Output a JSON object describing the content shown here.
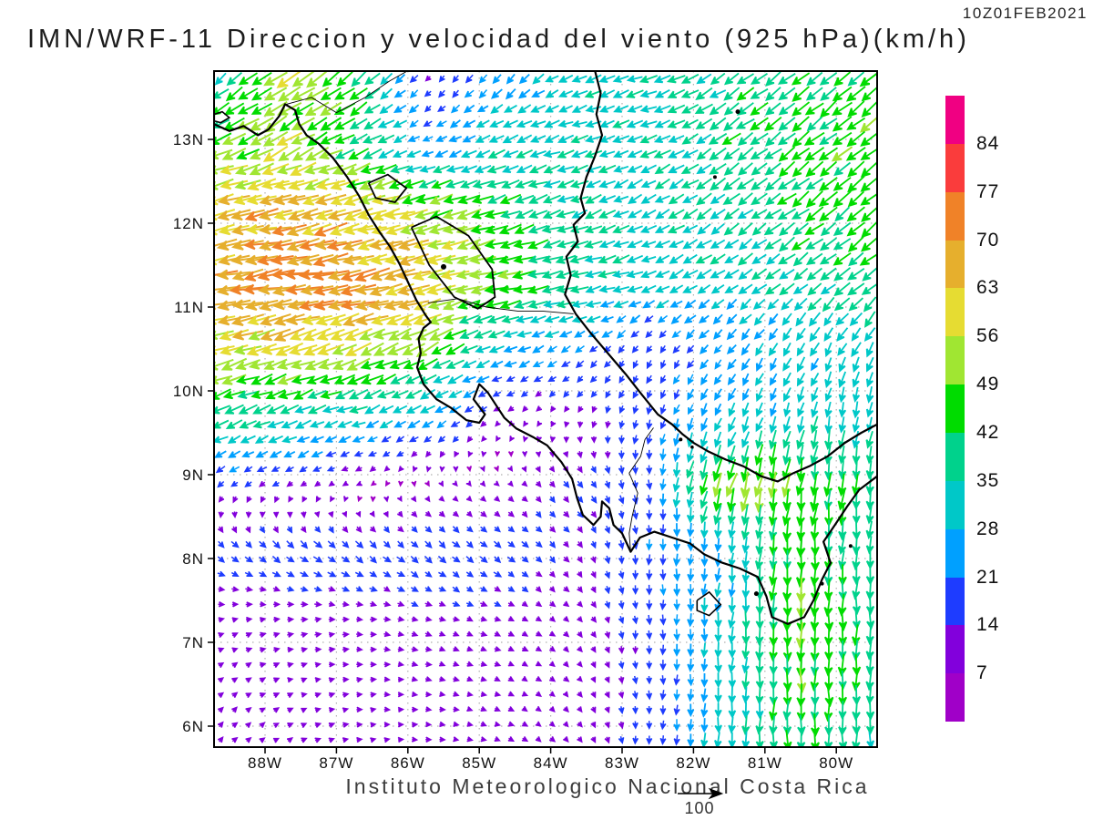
{
  "header": {
    "title": "IMN/WRF-11 Direccion y velocidad del viento (925 hPa)(km/h)",
    "timestamp": "10Z01FEB2021"
  },
  "footer": {
    "credit": "Instituto Meteorologico Nacional Costa Rica",
    "reference_vector": {
      "label": "100",
      "value": 100
    }
  },
  "colorbar": {
    "levels_top_to_bottom": [
      "84",
      "77",
      "70",
      "63",
      "56",
      "49",
      "42",
      "35",
      "28",
      "21",
      "14",
      "7"
    ],
    "colors_bottom_to_top": [
      "#A000C8",
      "#8200DC",
      "#1E3CFF",
      "#00A0FF",
      "#00C8C8",
      "#00D28C",
      "#00DC00",
      "#A0E632",
      "#E6DC32",
      "#E6AF2D",
      "#F08228",
      "#FA3C3C",
      "#F00082"
    ]
  },
  "axes": {
    "lat_ticks": [
      {
        "label": "13N",
        "value": 13
      },
      {
        "label": "12N",
        "value": 12
      },
      {
        "label": "11N",
        "value": 11
      },
      {
        "label": "10N",
        "value": 10
      },
      {
        "label": "9N",
        "value": 9
      },
      {
        "label": "8N",
        "value": 8
      },
      {
        "label": "7N",
        "value": 7
      },
      {
        "label": "6N",
        "value": 6
      }
    ],
    "lon_ticks": [
      {
        "label": "88W",
        "value": -88
      },
      {
        "label": "87W",
        "value": -87
      },
      {
        "label": "86W",
        "value": -86
      },
      {
        "label": "85W",
        "value": -85
      },
      {
        "label": "84W",
        "value": -84
      },
      {
        "label": "83W",
        "value": -83
      },
      {
        "label": "82W",
        "value": -82
      },
      {
        "label": "81W",
        "value": -81
      },
      {
        "label": "80W",
        "value": -80
      }
    ]
  },
  "chart_data": {
    "type": "vector_field",
    "title": "IMN/WRF-11 Direccion y velocidad del viento (925 hPa)(km/h)",
    "valid_time": "10Z01FEB2021",
    "level": "925 hPa",
    "units": "km/h",
    "lon_range": [
      -88.71,
      -79.43
    ],
    "lat_range": [
      5.73,
      13.82
    ],
    "speed_levels": [
      7,
      14,
      21,
      28,
      35,
      42,
      49,
      56,
      63,
      70,
      77,
      84
    ],
    "reference_vector": 100,
    "grid": {
      "lons": [
        -88.8,
        -87.77,
        -86.73,
        -85.7,
        -84.67,
        -83.63,
        -82.6,
        -81.57,
        -80.53,
        -79.5
      ],
      "lats": [
        5.7,
        6.5,
        7.3,
        8.1,
        8.9,
        9.7,
        10.5,
        11.3,
        12.1,
        12.9,
        13.7
      ],
      "u": [
        [
          7,
          9,
          10,
          10,
          10,
          7,
          -1,
          -2,
          0,
          0
        ],
        [
          8,
          10,
          11,
          11,
          10,
          7,
          0,
          -2,
          0,
          0
        ],
        [
          10,
          12,
          12,
          12,
          11,
          8,
          0,
          -2,
          -2,
          0
        ],
        [
          14,
          16,
          16,
          15,
          14,
          8,
          0,
          -2,
          -4,
          -2
        ],
        [
          -14,
          -12,
          -8,
          4,
          6,
          10,
          2,
          -16,
          -8,
          -4
        ],
        [
          -34,
          -34,
          -30,
          -24,
          -8,
          -4,
          -6,
          -12,
          -8,
          -6
        ],
        [
          -55,
          -56,
          -52,
          -44,
          -26,
          -18,
          -8,
          -16,
          -14,
          -16
        ],
        [
          -66,
          -71,
          -73,
          -62,
          -48,
          -38,
          -30,
          -26,
          -28,
          -32
        ],
        [
          -62,
          -65,
          -62,
          -52,
          -42,
          -33,
          -28,
          -30,
          -33,
          -35
        ],
        [
          -46,
          -46,
          -38,
          -20,
          -32,
          -32,
          -30,
          -33,
          -35,
          -36
        ],
        [
          -20,
          -48,
          -34,
          -8,
          -16,
          -30,
          -33,
          -32,
          -33,
          -34
        ]
      ],
      "v": [
        [
          9,
          6,
          3,
          0,
          -4,
          -9,
          -16,
          -32,
          -44,
          -36
        ],
        [
          8,
          4,
          1,
          -2,
          -4,
          -8,
          -16,
          -30,
          -46,
          -38
        ],
        [
          4,
          2,
          0,
          -4,
          -5,
          -8,
          -18,
          -30,
          -48,
          -38
        ],
        [
          -12,
          -14,
          -14,
          -13,
          -12,
          -10,
          -20,
          -26,
          -46,
          -36
        ],
        [
          -10,
          -8,
          -4,
          -6,
          -6,
          -12,
          -18,
          -50,
          -48,
          -38
        ],
        [
          -14,
          -14,
          -12,
          -14,
          -6,
          -10,
          -18,
          -24,
          -30,
          -32
        ],
        [
          -16,
          -18,
          -20,
          -22,
          -10,
          -12,
          -14,
          -18,
          -26,
          -28
        ],
        [
          -10,
          -12,
          -13,
          -16,
          -10,
          -8,
          -12,
          -18,
          -22,
          -26
        ],
        [
          -14,
          -15,
          -16,
          -14,
          -14,
          -12,
          -16,
          -20,
          -25,
          -28
        ],
        [
          -16,
          -24,
          -18,
          -10,
          -12,
          -10,
          -14,
          -22,
          -28,
          -30
        ],
        [
          -18,
          -34,
          -28,
          -10,
          -20,
          -12,
          -10,
          -20,
          -26,
          -30
        ]
      ]
    }
  },
  "geo": {
    "coast_pacific": [
      [
        -88.71,
        13.18
      ],
      [
        -88.5,
        13.1
      ],
      [
        -88.3,
        13.16
      ],
      [
        -88.1,
        13.05
      ],
      [
        -87.95,
        13.12
      ],
      [
        -87.8,
        13.28
      ],
      [
        -87.72,
        13.42
      ],
      [
        -87.58,
        13.35
      ],
      [
        -87.52,
        13.18
      ],
      [
        -87.42,
        13.05
      ],
      [
        -87.25,
        12.95
      ],
      [
        -87.05,
        12.78
      ],
      [
        -86.85,
        12.55
      ],
      [
        -86.68,
        12.32
      ],
      [
        -86.55,
        12.1
      ],
      [
        -86.4,
        11.9
      ],
      [
        -86.25,
        11.72
      ],
      [
        -86.12,
        11.52
      ],
      [
        -86.0,
        11.3
      ],
      [
        -85.88,
        11.08
      ],
      [
        -85.75,
        10.9
      ],
      [
        -85.68,
        10.82
      ],
      [
        -85.78,
        10.75
      ],
      [
        -85.85,
        10.62
      ],
      [
        -85.82,
        10.45
      ],
      [
        -85.87,
        10.28
      ],
      [
        -85.78,
        10.08
      ],
      [
        -85.6,
        9.9
      ],
      [
        -85.4,
        9.8
      ],
      [
        -85.18,
        9.65
      ],
      [
        -85.0,
        9.62
      ],
      [
        -84.92,
        9.72
      ],
      [
        -85.08,
        9.9
      ],
      [
        -85.0,
        10.08
      ],
      [
        -84.88,
        9.98
      ],
      [
        -84.78,
        9.85
      ],
      [
        -84.65,
        9.68
      ],
      [
        -84.48,
        9.55
      ],
      [
        -84.25,
        9.45
      ],
      [
        -84.05,
        9.35
      ],
      [
        -83.85,
        9.15
      ],
      [
        -83.7,
        8.95
      ],
      [
        -83.63,
        8.72
      ],
      [
        -83.55,
        8.52
      ],
      [
        -83.4,
        8.4
      ],
      [
        -83.3,
        8.5
      ],
      [
        -83.28,
        8.68
      ],
      [
        -83.18,
        8.6
      ],
      [
        -83.12,
        8.4
      ],
      [
        -83.0,
        8.3
      ],
      [
        -82.88,
        8.08
      ],
      [
        -82.75,
        8.25
      ],
      [
        -82.55,
        8.32
      ],
      [
        -82.3,
        8.25
      ],
      [
        -82.05,
        8.18
      ],
      [
        -81.85,
        8.05
      ],
      [
        -81.6,
        7.95
      ],
      [
        -81.35,
        7.88
      ],
      [
        -81.1,
        7.78
      ],
      [
        -80.98,
        7.55
      ],
      [
        -80.9,
        7.3
      ],
      [
        -80.68,
        7.22
      ],
      [
        -80.45,
        7.3
      ],
      [
        -80.32,
        7.5
      ],
      [
        -80.2,
        7.75
      ],
      [
        -80.08,
        7.95
      ],
      [
        -80.18,
        8.2
      ],
      [
        -80.02,
        8.4
      ],
      [
        -79.85,
        8.62
      ],
      [
        -79.68,
        8.82
      ],
      [
        -79.43,
        8.98
      ]
    ],
    "coast_caribbean": [
      [
        -83.38,
        13.82
      ],
      [
        -83.3,
        13.55
      ],
      [
        -83.36,
        13.3
      ],
      [
        -83.28,
        13.05
      ],
      [
        -83.38,
        12.8
      ],
      [
        -83.5,
        12.55
      ],
      [
        -83.58,
        12.3
      ],
      [
        -83.52,
        12.12
      ],
      [
        -83.68,
        11.98
      ],
      [
        -83.62,
        11.78
      ],
      [
        -83.78,
        11.6
      ],
      [
        -83.72,
        11.38
      ],
      [
        -83.8,
        11.15
      ],
      [
        -83.65,
        10.92
      ],
      [
        -83.45,
        10.7
      ],
      [
        -83.2,
        10.45
      ],
      [
        -82.95,
        10.2
      ],
      [
        -82.72,
        9.95
      ],
      [
        -82.5,
        9.72
      ],
      [
        -82.3,
        9.6
      ],
      [
        -82.15,
        9.48
      ],
      [
        -82.0,
        9.38
      ],
      [
        -81.8,
        9.28
      ],
      [
        -81.55,
        9.18
      ],
      [
        -81.3,
        9.1
      ],
      [
        -81.05,
        8.98
      ],
      [
        -80.82,
        8.92
      ],
      [
        -80.6,
        9.02
      ],
      [
        -80.38,
        9.1
      ],
      [
        -80.12,
        9.22
      ],
      [
        -79.88,
        9.38
      ],
      [
        -79.65,
        9.5
      ],
      [
        -79.43,
        9.6
      ]
    ],
    "borders": [
      [
        [
          -87.7,
          13.42
        ],
        [
          -87.35,
          13.5
        ],
        [
          -87.0,
          13.32
        ],
        [
          -86.6,
          13.5
        ],
        [
          -86.25,
          13.7
        ],
        [
          -86.0,
          13.82
        ]
      ],
      [
        [
          -85.72,
          11.05
        ],
        [
          -85.3,
          11.1
        ],
        [
          -84.9,
          11.0
        ],
        [
          -84.45,
          10.95
        ],
        [
          -84.1,
          10.95
        ],
        [
          -83.68,
          10.92
        ]
      ],
      [
        [
          -82.56,
          9.56
        ],
        [
          -82.68,
          9.42
        ],
        [
          -82.74,
          9.22
        ],
        [
          -82.9,
          9.02
        ],
        [
          -82.78,
          8.78
        ],
        [
          -82.86,
          8.5
        ],
        [
          -82.9,
          8.3
        ],
        [
          -82.88,
          8.08
        ]
      ]
    ],
    "lakes": [
      [
        [
          -85.95,
          11.95
        ],
        [
          -85.6,
          12.08
        ],
        [
          -85.15,
          11.85
        ],
        [
          -84.82,
          11.45
        ],
        [
          -84.78,
          11.12
        ],
        [
          -85.02,
          10.98
        ],
        [
          -85.35,
          11.12
        ],
        [
          -85.7,
          11.5
        ],
        [
          -85.95,
          11.95
        ]
      ],
      [
        [
          -86.55,
          12.48
        ],
        [
          -86.28,
          12.58
        ],
        [
          -86.02,
          12.42
        ],
        [
          -86.18,
          12.25
        ],
        [
          -86.45,
          12.3
        ],
        [
          -86.55,
          12.48
        ]
      ]
    ],
    "island_outlines": [
      [
        [
          -81.95,
          7.5
        ],
        [
          -81.78,
          7.6
        ],
        [
          -81.62,
          7.45
        ],
        [
          -81.78,
          7.32
        ],
        [
          -81.95,
          7.38
        ],
        [
          -81.95,
          7.5
        ]
      ],
      [
        [
          -88.71,
          13.3
        ],
        [
          -88.6,
          13.33
        ],
        [
          -88.5,
          13.26
        ],
        [
          -88.62,
          13.2
        ],
        [
          -88.71,
          13.22
        ],
        [
          -88.71,
          13.3
        ]
      ]
    ],
    "island_dots": [
      [
        -85.5,
        11.48,
        3
      ],
      [
        -81.38,
        13.33,
        2.5
      ],
      [
        -81.7,
        12.55,
        2
      ],
      [
        -81.12,
        7.58,
        2.5
      ],
      [
        -80.2,
        7.7,
        2
      ],
      [
        -79.8,
        8.15,
        2
      ],
      [
        -82.18,
        9.42,
        2
      ],
      [
        -82.02,
        9.33,
        1.8
      ]
    ]
  }
}
